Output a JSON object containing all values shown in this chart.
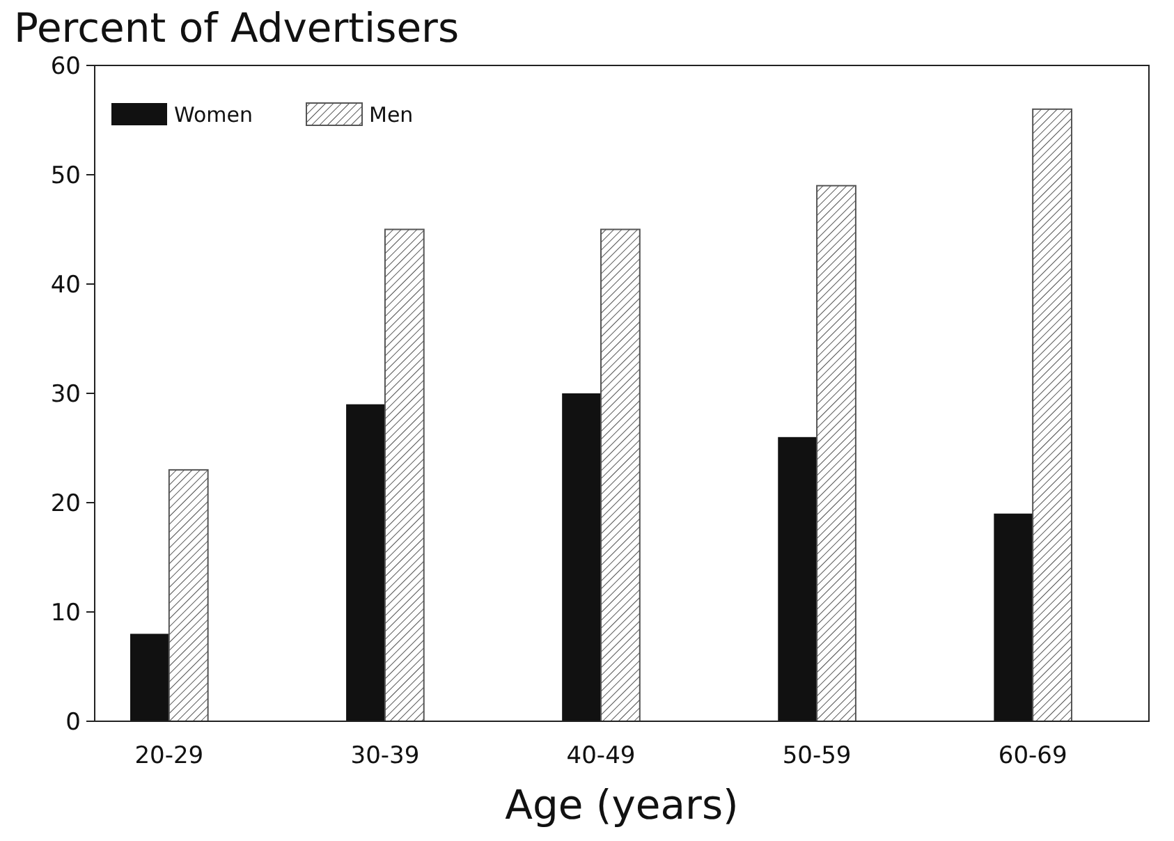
{
  "chart_data": {
    "type": "bar",
    "title": "Percent of Advertisers",
    "xlabel": "Age (years)",
    "categories": [
      "20-29",
      "30-39",
      "40-49",
      "50-59",
      "60-69"
    ],
    "series": [
      {
        "name": "Women",
        "color": "#111111",
        "values": [
          8,
          29,
          30,
          26,
          19
        ]
      },
      {
        "name": "Men",
        "color": "#555555",
        "values": [
          23,
          45,
          45,
          49,
          56
        ]
      }
    ],
    "ylim": [
      0,
      60
    ],
    "yticks": [
      0,
      10,
      20,
      30,
      40,
      50,
      60
    ],
    "grid": false,
    "legend": "top left"
  }
}
